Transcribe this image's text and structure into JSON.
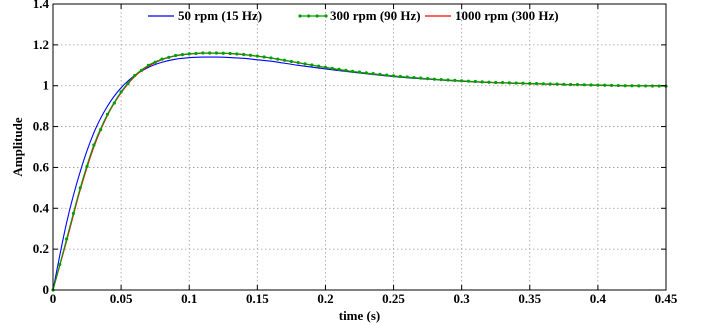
{
  "chart_data": {
    "type": "line",
    "xlabel": "time (s)",
    "ylabel": "Amplitude",
    "xlim": [
      0,
      0.45
    ],
    "ylim": [
      0,
      1.4
    ],
    "grid": true,
    "legend_position": "top",
    "x_ticks": [
      "0",
      "0.05",
      "0.1",
      "0.15",
      "0.2",
      "0.25",
      "0.3",
      "0.35",
      "0.4",
      "0.45"
    ],
    "y_ticks": [
      "0",
      "0.2",
      "0.4",
      "0.6",
      "0.8",
      "1",
      "1.2",
      "1.4"
    ],
    "x": [
      0,
      0.01,
      0.02,
      0.03,
      0.04,
      0.05,
      0.06,
      0.07,
      0.08,
      0.09,
      0.1,
      0.11,
      0.12,
      0.13,
      0.14,
      0.15,
      0.16,
      0.18,
      0.2,
      0.22,
      0.25,
      0.28,
      0.3,
      0.32,
      0.35,
      0.38,
      0.4,
      0.42,
      0.45
    ],
    "series": [
      {
        "name": "50 rpm (15 Hz)",
        "color": "#0000ff",
        "marker": "none",
        "values": [
          0,
          0.33,
          0.58,
          0.77,
          0.9,
          0.99,
          1.05,
          1.09,
          1.115,
          1.13,
          1.137,
          1.14,
          1.14,
          1.138,
          1.134,
          1.127,
          1.12,
          1.1,
          1.082,
          1.066,
          1.045,
          1.03,
          1.022,
          1.016,
          1.01,
          1.005,
          1.003,
          1.0,
          1.0
        ]
      },
      {
        "name": "300 rpm (90 Hz)",
        "color": "#00a000",
        "marker": "dot",
        "values": [
          0,
          0.25,
          0.5,
          0.71,
          0.86,
          0.97,
          1.05,
          1.1,
          1.13,
          1.148,
          1.156,
          1.16,
          1.16,
          1.158,
          1.153,
          1.145,
          1.136,
          1.113,
          1.09,
          1.07,
          1.048,
          1.032,
          1.024,
          1.017,
          1.011,
          1.006,
          1.003,
          1.0,
          0.998
        ]
      },
      {
        "name": "1000 rpm (300 Hz)",
        "color": "#ff0000",
        "marker": "none",
        "values": [
          0,
          0.24,
          0.49,
          0.7,
          0.855,
          0.965,
          1.045,
          1.095,
          1.127,
          1.146,
          1.155,
          1.159,
          1.159,
          1.157,
          1.152,
          1.144,
          1.135,
          1.112,
          1.089,
          1.069,
          1.047,
          1.031,
          1.023,
          1.016,
          1.01,
          1.005,
          1.002,
          1.0,
          1.0
        ]
      }
    ]
  }
}
